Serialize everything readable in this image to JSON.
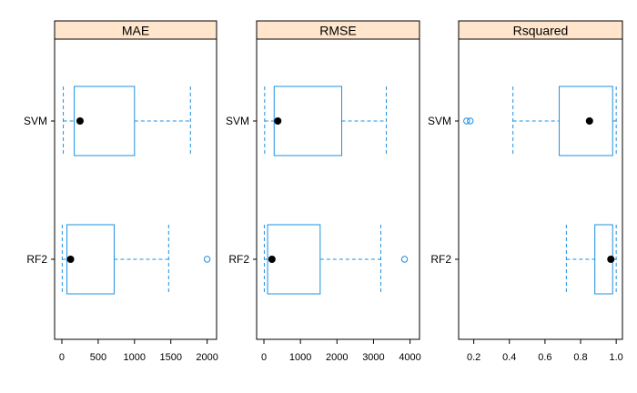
{
  "chart_data": {
    "type": "box",
    "layout": "three panels in one row",
    "categories": [
      "SVM",
      "RF2"
    ],
    "panels": [
      {
        "title": "MAE",
        "xlim": [
          -100,
          2130
        ],
        "ticks": [
          0,
          500,
          1000,
          1500,
          2000
        ],
        "tick_labels": [
          "0",
          "500",
          "1000",
          "1500",
          "2000"
        ],
        "boxes": [
          {
            "category": "SVM",
            "whisker_low": 20,
            "q1": 170,
            "median": 250,
            "q3": 1000,
            "whisker_high": 1770,
            "outliers": []
          },
          {
            "category": "RF2",
            "whisker_low": 5,
            "q1": 70,
            "median": 120,
            "q3": 720,
            "whisker_high": 1470,
            "outliers": [
              2000
            ]
          }
        ]
      },
      {
        "title": "RMSE",
        "xlim": [
          -200,
          4260
        ],
        "ticks": [
          0,
          1000,
          2000,
          3000,
          4000
        ],
        "tick_labels": [
          "0",
          "1000",
          "2000",
          "3000",
          "4000"
        ],
        "boxes": [
          {
            "category": "SVM",
            "whisker_low": 20,
            "q1": 280,
            "median": 380,
            "q3": 2130,
            "whisker_high": 3350,
            "outliers": []
          },
          {
            "category": "RF2",
            "whisker_low": 10,
            "q1": 100,
            "median": 220,
            "q3": 1540,
            "whisker_high": 3200,
            "outliers": [
              3850
            ]
          }
        ]
      },
      {
        "title": "Rsquared",
        "xlim": [
          0.115,
          1.035
        ],
        "ticks": [
          0.2,
          0.4,
          0.6,
          0.8,
          1.0
        ],
        "tick_labels": [
          "0.2",
          "0.4",
          "0.6",
          "0.8",
          "1.0"
        ],
        "boxes": [
          {
            "category": "SVM",
            "whisker_low": 0.42,
            "q1": 0.68,
            "median": 0.85,
            "q3": 0.98,
            "whisker_high": 1.0,
            "outliers": [
              0.16,
              0.18
            ]
          },
          {
            "category": "RF2",
            "whisker_low": 0.72,
            "q1": 0.88,
            "median": 0.97,
            "q3": 0.98,
            "whisker_high": 1.0,
            "outliers": []
          }
        ]
      }
    ],
    "colors": {
      "box": "#1E90E0",
      "median": "#000000",
      "strip": "#FFE5CC",
      "frame": "#000000"
    }
  }
}
